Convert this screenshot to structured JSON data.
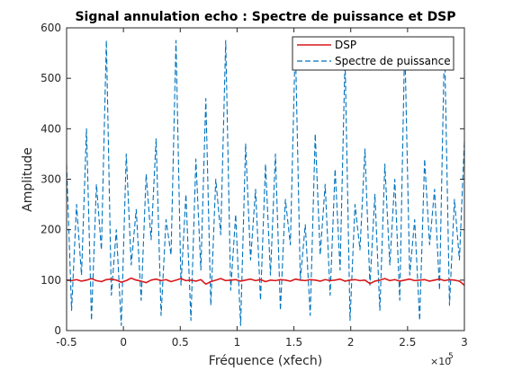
{
  "chart_data": {
    "type": "line",
    "title": "Signal annulation echo : Spectre de puissance et DSP",
    "xlabel": "Fréquence (xfech)",
    "ylabel": "Amplitude",
    "x_exponent_base": "×10",
    "x_exponent": "5",
    "xlim": [
      -0.5,
      3
    ],
    "ylim": [
      0,
      600
    ],
    "xticks": [
      "-0.5",
      "0",
      "0.5",
      "1",
      "1.5",
      "2",
      "2.5",
      "3"
    ],
    "xtick_values": [
      -0.5,
      0,
      0.5,
      1,
      1.5,
      2,
      2.5,
      3
    ],
    "yticks": [
      "0",
      "100",
      "200",
      "300",
      "400",
      "500",
      "600"
    ],
    "ytick_values": [
      0,
      100,
      200,
      300,
      400,
      500,
      600
    ],
    "grid": false,
    "legend_position": "top-right",
    "series": [
      {
        "name": "DSP",
        "color": "#d7191c",
        "style": "solid",
        "x_range": [
          -0.5,
          3
        ],
        "values": [
          100,
          99,
          101,
          98,
          100,
          103,
          99,
          97,
          101,
          102,
          100,
          96,
          99,
          104,
          100,
          98,
          95,
          100,
          102,
          99,
          101,
          97,
          100,
          103,
          99,
          100,
          98,
          101,
          92,
          97,
          100,
          103,
          99,
          100,
          101,
          98,
          100,
          102,
          99,
          101,
          97,
          100,
          99,
          101,
          100,
          98,
          102,
          100,
          99,
          101,
          100,
          98,
          101,
          99,
          100,
          102,
          98,
          100,
          101,
          99,
          100,
          93,
          98,
          100,
          103,
          99,
          101,
          98,
          100,
          102,
          99,
          100,
          101,
          98,
          100,
          102,
          99,
          101,
          100,
          98,
          90
        ]
      },
      {
        "name": "Spectre de puissance",
        "color": "#0072bd",
        "style": "dashed",
        "x_range": [
          -0.5,
          3
        ],
        "values": [
          330,
          40,
          250,
          110,
          400,
          20,
          290,
          160,
          575,
          70,
          200,
          10,
          350,
          130,
          240,
          60,
          310,
          180,
          380,
          30,
          220,
          150,
          575,
          90,
          270,
          20,
          340,
          120,
          460,
          50,
          300,
          190,
          575,
          80,
          230,
          10,
          370,
          140,
          280,
          60,
          330,
          110,
          350,
          40,
          260,
          170,
          575,
          100,
          210,
          30,
          390,
          150,
          290,
          70,
          320,
          120,
          540,
          20,
          250,
          160,
          360,
          90,
          270,
          40,
          330,
          130,
          300,
          60,
          575,
          110,
          220,
          20,
          340,
          170,
          280,
          80,
          575,
          50,
          260,
          140,
          375
        ]
      }
    ]
  }
}
